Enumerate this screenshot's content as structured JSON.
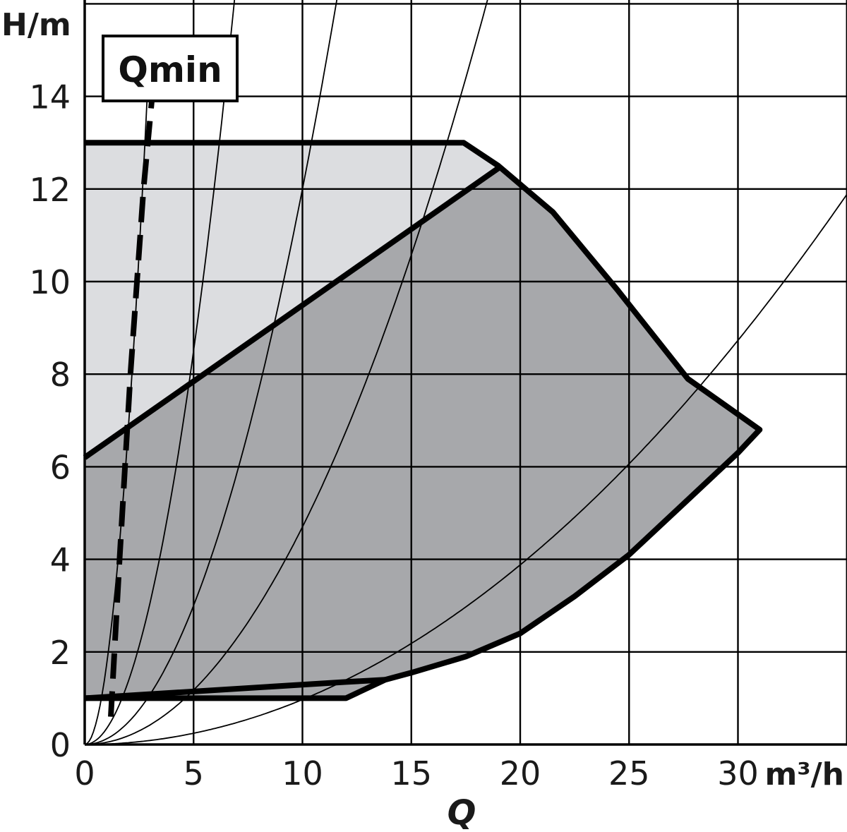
{
  "chart_data": {
    "type": "line",
    "xlabel": "Q",
    "ylabel": "H/m",
    "x_unit": "m³/h",
    "xlim": [
      0,
      35
    ],
    "ylim": [
      0,
      16
    ],
    "x_ticks": [
      0,
      5,
      10,
      15,
      20,
      25,
      30
    ],
    "y_ticks": [
      0,
      2,
      4,
      6,
      8,
      10,
      12,
      14
    ],
    "x_tick_labels": [
      "0",
      "5",
      "10",
      "15",
      "20",
      "25",
      "30"
    ],
    "y_tick_labels": [
      "0",
      "2",
      "4",
      "6",
      "8",
      "10",
      "12",
      "14"
    ],
    "grid": true,
    "annotation": "Qmin",
    "series": [
      {
        "role": "max-envelope",
        "points": [
          [
            0,
            13.0
          ],
          [
            17.4,
            13.0
          ],
          [
            19.0,
            12.5
          ],
          [
            21.5,
            11.5
          ],
          [
            24.5,
            9.8
          ],
          [
            27.7,
            7.9
          ],
          [
            31.0,
            6.8
          ]
        ]
      },
      {
        "role": "lower-envelope",
        "points": [
          [
            31.0,
            6.8
          ],
          [
            30.0,
            6.3
          ],
          [
            27.5,
            5.2
          ],
          [
            25.0,
            4.1
          ],
          [
            22.5,
            3.2
          ],
          [
            20.0,
            2.4
          ],
          [
            17.5,
            1.9
          ],
          [
            15.0,
            1.55
          ],
          [
            13.8,
            1.4
          ],
          [
            12.0,
            1.0
          ],
          [
            0,
            1.0
          ]
        ]
      },
      {
        "role": "min-curve",
        "points": [
          [
            0,
            1.0
          ],
          [
            12.0,
            1.35
          ],
          [
            13.8,
            1.4
          ]
        ]
      },
      {
        "role": "mid-curve",
        "points": [
          [
            0,
            6.2
          ],
          [
            19.0,
            12.45
          ]
        ]
      },
      {
        "role": "q-min-line",
        "style": "dashed",
        "points": [
          [
            1.2,
            0.6
          ],
          [
            1.6,
            4.0
          ],
          [
            2.1,
            8.0
          ],
          [
            2.7,
            12.0
          ],
          [
            3.1,
            14.0
          ]
        ]
      },
      {
        "role": "system-curve",
        "k": 1.7,
        "points": [
          [
            0,
            0
          ],
          [
            2.5,
            1.7
          ],
          [
            5.0,
            6.8
          ],
          [
            7.5,
            15.3
          ]
        ]
      },
      {
        "role": "system-curve",
        "k": 0.34,
        "points": [
          [
            0,
            0
          ],
          [
            5,
            0.85
          ],
          [
            10,
            3.4
          ],
          [
            15,
            7.65
          ],
          [
            20,
            13.6
          ]
        ]
      },
      {
        "role": "system-curve",
        "k": 0.12,
        "points": [
          [
            0,
            0
          ],
          [
            10,
            1.2
          ],
          [
            20,
            4.8
          ],
          [
            30,
            10.8
          ],
          [
            35,
            14.7
          ]
        ]
      },
      {
        "role": "system-curve",
        "k": 0.047,
        "points": [
          [
            0,
            0
          ],
          [
            10,
            0.47
          ],
          [
            20,
            1.88
          ],
          [
            30,
            4.23
          ],
          [
            35,
            5.76
          ]
        ]
      },
      {
        "role": "system-curve",
        "k": 0.0097,
        "points": [
          [
            0,
            0
          ],
          [
            10,
            0.1
          ],
          [
            20,
            0.39
          ],
          [
            30,
            0.87
          ],
          [
            35,
            1.19
          ]
        ]
      }
    ]
  }
}
